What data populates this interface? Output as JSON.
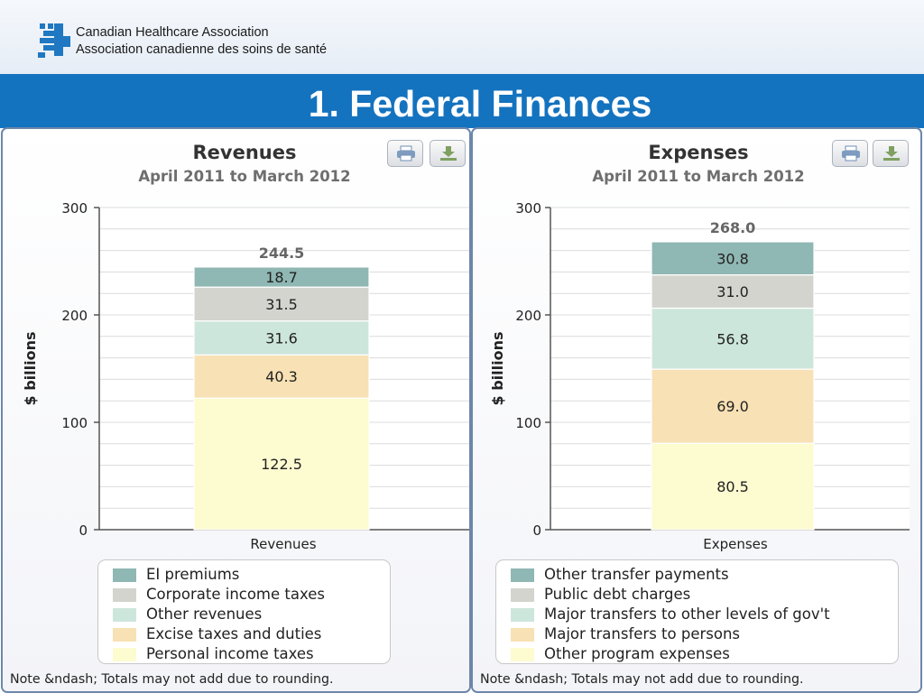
{
  "header": {
    "org_name_en": "Canadian Healthcare Association",
    "org_name_fr": "Association canadienne des soins de santé",
    "slide_title": "1. Federal Finances"
  },
  "colors": {
    "title_bar": "#1473bf",
    "logo": "#1f78c1",
    "segments": [
      "#fdfbd0",
      "#f8e1b4",
      "#cde6dc",
      "#d3d4ce",
      "#8fb7b3"
    ]
  },
  "chart_data": [
    {
      "type": "bar",
      "stacked": true,
      "title": "Revenues",
      "subtitle": "April 2011 to March 2012",
      "xlabel": "",
      "ylabel": "$ billions",
      "categories": [
        "Revenues"
      ],
      "ylim": [
        0,
        300
      ],
      "yticks": [
        0,
        100,
        200,
        300
      ],
      "total_label": "244.5",
      "grid": true,
      "legend_position": "bottom",
      "series": [
        {
          "name": "Personal income taxes",
          "values": [
            122.5
          ],
          "label": "122.5"
        },
        {
          "name": "Excise taxes and duties",
          "values": [
            40.3
          ],
          "label": "40.3"
        },
        {
          "name": "Other revenues",
          "values": [
            31.6
          ],
          "label": "31.6"
        },
        {
          "name": "Corporate income taxes",
          "values": [
            31.5
          ],
          "label": "31.5"
        },
        {
          "name": "EI premiums",
          "values": [
            18.7
          ],
          "label": "18.7"
        }
      ],
      "note": "Note &ndash; Totals may not add due to rounding."
    },
    {
      "type": "bar",
      "stacked": true,
      "title": "Expenses",
      "subtitle": "April 2011 to March 2012",
      "xlabel": "",
      "ylabel": "$ billions",
      "categories": [
        "Expenses"
      ],
      "ylim": [
        0,
        300
      ],
      "yticks": [
        0,
        100,
        200,
        300
      ],
      "total_label": "268.0",
      "grid": true,
      "legend_position": "bottom",
      "series": [
        {
          "name": "Other program expenses",
          "values": [
            80.5
          ],
          "label": "80.5"
        },
        {
          "name": "Major transfers to persons",
          "values": [
            69.0
          ],
          "label": "69.0"
        },
        {
          "name": "Major transfers to other levels of gov't",
          "values": [
            56.8
          ],
          "label": "56.8"
        },
        {
          "name": "Public debt charges",
          "values": [
            31.0
          ],
          "label": "31.0"
        },
        {
          "name": "Other transfer payments",
          "values": [
            30.8
          ],
          "label": "30.8"
        }
      ],
      "note": "Note &ndash; Totals may not add due to rounding."
    }
  ],
  "toolbar": {
    "icons": [
      "print-icon",
      "download-icon"
    ]
  }
}
